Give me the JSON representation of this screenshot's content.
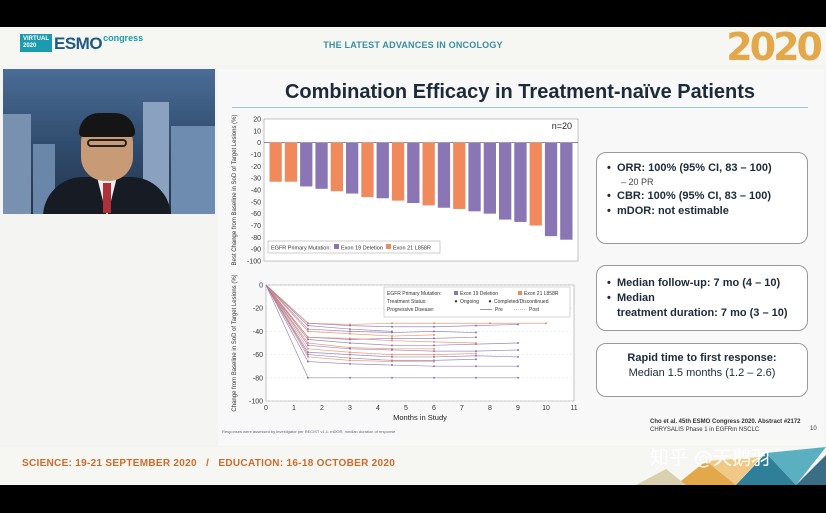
{
  "header": {
    "logo_virtual": "VIRTUAL",
    "logo_year": "2020",
    "logo_brand": "ESMO",
    "logo_congress": "congress",
    "headline": "THE LATEST ADVANCES IN ONCOLOGY",
    "year_big": "2020"
  },
  "slide": {
    "title": "Combination Efficacy in Treatment-naïve Patients",
    "box1": {
      "orr_label": "ORR: 100% (95% CI, 83 – 100)",
      "orr_sub": "– 20 PR",
      "cbr_label": "CBR: 100% (95% CI, 83 – 100)",
      "mdor_label": "mDOR: not estimable"
    },
    "box2": {
      "followup_label": "Median follow-up: 7 mo (4 – 10)",
      "duration_label_1": "Median",
      "duration_label_2": "treatment duration: 7 mo (3 – 10)"
    },
    "box3": {
      "line1": "Rapid time to first response:",
      "line2": "Median 1.5 months (1.2 – 2.6)"
    },
    "citation_line1": "Cho et al. 45th ESMO Congress 2020. Abstract #2172",
    "citation_line2": "CHRYSALIS Phase 1 in EGFRm NSCLC",
    "page_number": "10",
    "footnote": "Responses were assessed by investigator per RECIST v1.1. mDOR, median duration of response"
  },
  "footer": {
    "dates": "SCIENCE: 19-21 SEPTEMBER 2020   /   EDUCATION: 16-18 OCTOBER 2020"
  },
  "watermark": "知乎 @天鹅羽",
  "colors": {
    "exon19": "#8a76b5",
    "l858r": "#f08a5c",
    "accent": "#3a8ea3"
  },
  "chart_data": [
    {
      "type": "bar",
      "title": "",
      "ylabel": "Best Change from Baseline in SoD of Target Lesions (%)",
      "ylim": [
        -100,
        20
      ],
      "yticks": [
        20,
        10,
        0,
        -10,
        -20,
        -30,
        -40,
        -50,
        -60,
        -70,
        -80,
        -90,
        -100
      ],
      "n_label": "n=20",
      "legend_title": "EGFR Primary Mutation:",
      "legend": [
        {
          "name": "Exon 19 Deletion",
          "color": "#8a76b5"
        },
        {
          "name": "Exon 21 L858R",
          "color": "#f08a5c"
        }
      ],
      "values": [
        -33,
        -33,
        -37,
        -39,
        -41,
        -43,
        -46,
        -47,
        -49,
        -51,
        -53,
        -55,
        -56,
        -58,
        -60,
        -65,
        -67,
        -70,
        -79,
        -82
      ],
      "mutation": [
        "l858r",
        "l858r",
        "exon19",
        "exon19",
        "l858r",
        "exon19",
        "l858r",
        "exon19",
        "l858r",
        "exon19",
        "l858r",
        "exon19",
        "l858r",
        "exon19",
        "exon19",
        "exon19",
        "exon19",
        "l858r",
        "exon19",
        "exon19"
      ]
    },
    {
      "type": "line",
      "ylabel": "Change from Baseline in SoD of Target Lesions (%)",
      "xlabel": "Months in Study",
      "xlim": [
        0,
        11
      ],
      "ylim": [
        -100,
        0
      ],
      "xticks": [
        0,
        1,
        2,
        3,
        4,
        5,
        6,
        7,
        8,
        9,
        10,
        11
      ],
      "yticks": [
        0,
        -20,
        -40,
        -60,
        -80,
        -100
      ],
      "legend_title_mutation": "EGFR Primary Mutation:",
      "legend_exon19": "Exon 19 Deletion",
      "legend_l858r": "Exon 21 L858R",
      "legend_title_status": "Treatment Status:",
      "legend_ongoing": "Ongoing",
      "legend_completed": "Completed/Discontinued",
      "legend_title_pd": "Progressive Disease:",
      "legend_pre": "Pre",
      "legend_post": "Post",
      "series": [
        {
          "mutation": "exon19",
          "x": [
            0,
            1.5,
            3,
            4.5,
            6,
            7.5,
            9
          ],
          "y": [
            0,
            -33,
            -35,
            -36,
            -36,
            -35,
            -34
          ]
        },
        {
          "mutation": "l858r",
          "x": [
            0,
            1.5,
            3,
            4.5,
            6,
            8,
            10
          ],
          "y": [
            0,
            -33,
            -34,
            -33,
            -33,
            -33,
            -33
          ]
        },
        {
          "mutation": "exon19",
          "x": [
            0,
            1.5,
            3,
            4.5,
            6,
            7.5
          ],
          "y": [
            0,
            -38,
            -40,
            -41,
            -40,
            -41
          ]
        },
        {
          "mutation": "l858r",
          "x": [
            0,
            1.5,
            3,
            4.5,
            6
          ],
          "y": [
            0,
            -40,
            -42,
            -44,
            -43
          ]
        },
        {
          "mutation": "exon19",
          "x": [
            0,
            1.5,
            3,
            4.5,
            6,
            7.5
          ],
          "y": [
            0,
            -45,
            -47,
            -46,
            -46,
            -45
          ]
        },
        {
          "mutation": "exon19",
          "x": [
            0,
            1.5,
            3,
            4.5,
            6,
            7.5,
            9
          ],
          "y": [
            0,
            -47,
            -50,
            -52,
            -52,
            -51,
            -50
          ]
        },
        {
          "mutation": "l858r",
          "x": [
            0,
            1.5,
            3,
            4.5,
            6
          ],
          "y": [
            0,
            -50,
            -54,
            -55,
            -55
          ]
        },
        {
          "mutation": "exon19",
          "x": [
            0,
            1.5,
            3,
            4.5,
            6,
            7.5,
            9
          ],
          "y": [
            0,
            -52,
            -55,
            -56,
            -57,
            -57,
            -56
          ]
        },
        {
          "mutation": "l858r",
          "x": [
            0,
            1.5,
            3,
            4.5,
            6,
            7.5
          ],
          "y": [
            0,
            -55,
            -58,
            -60,
            -60,
            -59
          ]
        },
        {
          "mutation": "exon19",
          "x": [
            0,
            1.5,
            3,
            4.5,
            6,
            7.5,
            9
          ],
          "y": [
            0,
            -58,
            -60,
            -62,
            -62,
            -61,
            -62
          ]
        },
        {
          "mutation": "exon19",
          "x": [
            0,
            1.5,
            3,
            4.5,
            6,
            7.5
          ],
          "y": [
            0,
            -60,
            -63,
            -65,
            -65,
            -64
          ]
        },
        {
          "mutation": "l858r",
          "x": [
            0,
            1.5,
            3,
            4.5,
            6
          ],
          "y": [
            0,
            -62,
            -65,
            -66,
            -66
          ]
        },
        {
          "mutation": "exon19",
          "x": [
            0,
            1.5,
            3,
            4.5,
            6,
            7.5,
            9
          ],
          "y": [
            0,
            -66,
            -68,
            -69,
            -70,
            -70,
            -70
          ]
        },
        {
          "mutation": "exon19",
          "x": [
            0,
            1.5,
            3,
            4.5,
            6,
            7.5,
            9
          ],
          "y": [
            0,
            -80,
            -80,
            -80,
            -80,
            -80,
            -80
          ]
        },
        {
          "mutation": "l858r",
          "x": [
            0,
            1.5,
            3,
            4.5,
            6,
            7.5
          ],
          "y": [
            0,
            -45,
            -46,
            -48,
            -49,
            -50
          ]
        },
        {
          "mutation": "exon19",
          "x": [
            0,
            1.5,
            3,
            4.5
          ],
          "y": [
            0,
            -35,
            -38,
            -40
          ]
        }
      ]
    }
  ]
}
